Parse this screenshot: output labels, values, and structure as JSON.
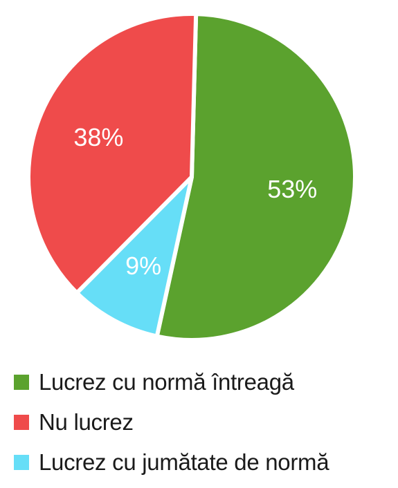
{
  "chart_data": {
    "type": "pie",
    "categories": [
      "Lucrez cu normă întreagă",
      "Lucrez cu jumătate de normă",
      "Nu lucrez"
    ],
    "values": [
      53,
      9,
      38
    ],
    "labels": [
      "53%",
      "9%",
      "38%"
    ],
    "colors": [
      "#5ba22e",
      "#66def7",
      "#ef4b4b"
    ],
    "legend_position": "bottom"
  },
  "legend": {
    "items": [
      {
        "label": "Lucrez cu normă întreagă",
        "color": "#5ba22e"
      },
      {
        "label": "Nu lucrez",
        "color": "#ef4b4b"
      },
      {
        "label": "Lucrez cu jumătate de normă",
        "color": "#66def7"
      }
    ]
  }
}
